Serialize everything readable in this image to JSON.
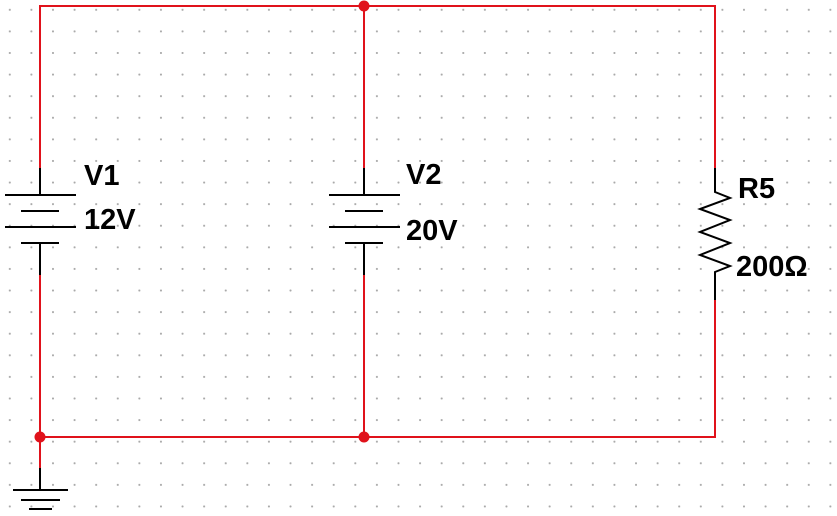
{
  "schematic": {
    "components": [
      {
        "ref": "V1",
        "value": "12V",
        "type": "dc-voltage-source"
      },
      {
        "ref": "V2",
        "value": "20V",
        "type": "dc-voltage-source"
      },
      {
        "ref": "R5",
        "value": "200Ω",
        "type": "resistor"
      }
    ],
    "ground": {
      "type": "ground-symbol"
    },
    "colors": {
      "wire": "#e0121b",
      "component": "#000000",
      "grid_dot": "#a9a9a9",
      "background": "#ffffff"
    }
  }
}
